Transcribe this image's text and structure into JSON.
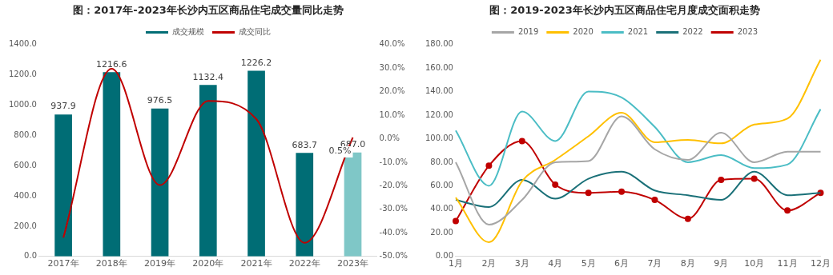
{
  "chart_data": [
    {
      "type": "bar",
      "title": "图：2017年-2023年长沙内五区商品住宅成交量同比走势",
      "categories": [
        "2017年",
        "2018年",
        "2019年",
        "2020年",
        "2021年",
        "2022年",
        "2023年"
      ],
      "series": [
        {
          "name": "成交规模",
          "color": "#006d75",
          "colors": [
            "#006d75",
            "#006d75",
            "#006d75",
            "#006d75",
            "#006d75",
            "#006d75",
            "#7fc7c7"
          ],
          "values": [
            937.9,
            1216.6,
            976.5,
            1132.4,
            1226.2,
            683.7,
            687.0
          ],
          "value_labels": [
            "937.9",
            "1216.6",
            "976.5",
            "1132.4",
            "1226.2",
            "683.7",
            "687.0"
          ]
        },
        {
          "name": "成交同比",
          "type": "line",
          "axis": "y2",
          "color": "#c00000",
          "values": [
            -42,
            29.7,
            -19.7,
            16.0,
            8.3,
            -44.2,
            0.5
          ],
          "value_labels": [
            null,
            null,
            null,
            null,
            null,
            null,
            "0.5%"
          ]
        }
      ],
      "ylim": [
        0,
        1400
      ],
      "yticks": [
        {
          "value": 0,
          "label": "0.0"
        },
        {
          "value": 200,
          "label": "200.0"
        },
        {
          "value": 400,
          "label": "400.0"
        },
        {
          "value": 600,
          "label": "600.0"
        },
        {
          "value": 800,
          "label": "800.0"
        },
        {
          "value": 1000,
          "label": "1000.0"
        },
        {
          "value": 1200,
          "label": "1200.0"
        },
        {
          "value": 1400,
          "label": "1400.0"
        }
      ],
      "y2lim": [
        -50,
        40
      ],
      "y2ticks": [
        {
          "value": -50,
          "label": "-50.0%"
        },
        {
          "value": -40,
          "label": "-40.0%"
        },
        {
          "value": -30,
          "label": "-30.0%"
        },
        {
          "value": -20,
          "label": "-20.0%"
        },
        {
          "value": -10,
          "label": "-10.0%"
        },
        {
          "value": 0,
          "label": "0.0%"
        },
        {
          "value": 10,
          "label": "10.0%"
        },
        {
          "value": 20,
          "label": "20.0%"
        },
        {
          "value": 30,
          "label": "30.0%"
        },
        {
          "value": 40,
          "label": "40.0%"
        }
      ],
      "grid": false,
      "legend": "top"
    },
    {
      "type": "line",
      "title": "图：2019-2023年长沙内五区商品住宅月度成交面积走势",
      "categories": [
        "1月",
        "2月",
        "3月",
        "4月",
        "5月",
        "6月",
        "7月",
        "8月",
        "9月",
        "10月",
        "11月",
        "12月"
      ],
      "series": [
        {
          "name": "2019",
          "color": "#a6a6a6",
          "marker": "none",
          "values": [
            80,
            27,
            48,
            80,
            81,
            119,
            91,
            82,
            105,
            80,
            89,
            89
          ]
        },
        {
          "name": "2020",
          "color": "#ffc000",
          "marker": "none",
          "values": [
            50,
            12,
            64,
            82,
            102,
            122,
            97,
            99,
            96,
            112,
            117,
            167
          ]
        },
        {
          "name": "2021",
          "color": "#4bbdc5",
          "marker": "none",
          "values": [
            107,
            60,
            123,
            98,
            140,
            135,
            110,
            80,
            86,
            75,
            78,
            125
          ]
        },
        {
          "name": "2022",
          "color": "#1a7078",
          "marker": "none",
          "values": [
            48,
            42,
            65,
            49,
            66,
            72,
            56,
            52,
            48,
            72,
            52,
            54
          ]
        },
        {
          "name": "2023",
          "color": "#c00000",
          "marker": "circle",
          "values": [
            30,
            77,
            98,
            61,
            54,
            55,
            48,
            32,
            65,
            66,
            39,
            54
          ]
        }
      ],
      "ylim": [
        0,
        180
      ],
      "yticks": [
        {
          "value": 0,
          "label": "0.00"
        },
        {
          "value": 20,
          "label": "20.00"
        },
        {
          "value": 40,
          "label": "40.00"
        },
        {
          "value": 60,
          "label": "60.00"
        },
        {
          "value": 80,
          "label": "80.00"
        },
        {
          "value": 100,
          "label": "100.00"
        },
        {
          "value": 120,
          "label": "120.00"
        },
        {
          "value": 140,
          "label": "140.00"
        },
        {
          "value": 160,
          "label": "160.00"
        },
        {
          "value": 180,
          "label": "180.00"
        }
      ],
      "grid": false,
      "legend": "top"
    }
  ]
}
